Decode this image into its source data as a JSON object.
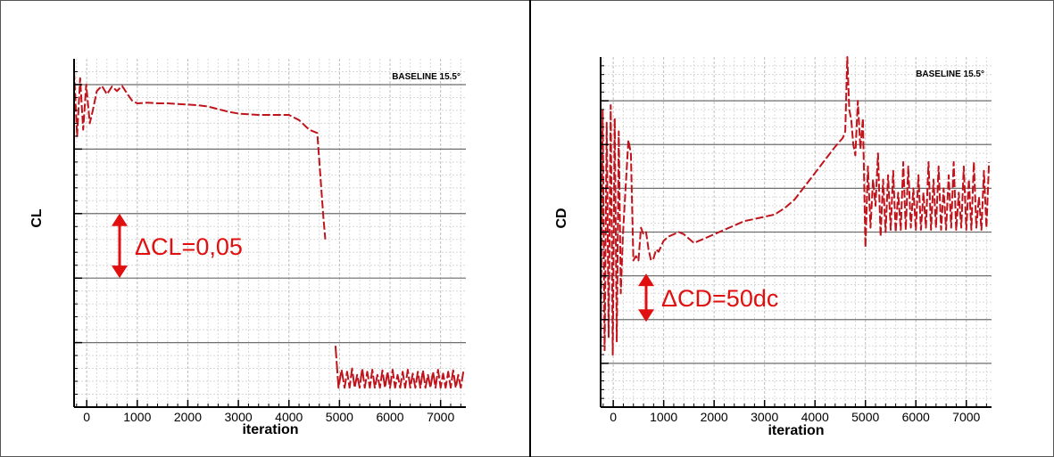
{
  "chart_data": [
    {
      "type": "line",
      "title": "BASELINE 15.5°",
      "xlabel": "iteration",
      "ylabel": "CL",
      "xlim": [
        -250,
        7500
      ],
      "ylim": [
        0,
        5.4
      ],
      "x_ticks": [
        0,
        1000,
        2000,
        3000,
        4000,
        5000,
        6000,
        7000
      ],
      "grid": true,
      "line_color": "#c0141c",
      "annotation": {
        "text": "ΔCL=0,05",
        "arrow_span": [
          2.0,
          3.0
        ]
      },
      "series": [
        {
          "x": [
            -250,
            -190,
            -130,
            -70,
            -10,
            60,
            120,
            200,
            300,
            400,
            500,
            600,
            700,
            800,
            900,
            1000,
            1200,
            1400,
            1600,
            1800,
            2000,
            2200,
            2400,
            2600,
            2800,
            3000,
            3200,
            3400,
            3600,
            3800,
            4000,
            4200,
            4400,
            4560,
            4620,
            4680,
            4720
          ],
          "y": [
            5.2,
            4.2,
            5.1,
            4.3,
            5.0,
            4.4,
            4.6,
            4.9,
            4.98,
            4.85,
            4.97,
            4.9,
            4.98,
            4.86,
            4.75,
            4.71,
            4.72,
            4.71,
            4.71,
            4.7,
            4.69,
            4.68,
            4.66,
            4.62,
            4.58,
            4.55,
            4.54,
            4.53,
            4.53,
            4.53,
            4.53,
            4.45,
            4.3,
            4.25,
            3.6,
            2.95,
            2.6
          ]
        },
        {
          "x": [
            4920,
            4980,
            5040,
            5100,
            5150,
            5200,
            5250,
            5300,
            5350,
            5400,
            5450,
            5500,
            5550,
            5600,
            5650,
            5700,
            5750,
            5800,
            5850,
            5900,
            5950,
            6000,
            6050,
            6100,
            6150,
            6200,
            6250,
            6300,
            6350,
            6400,
            6450,
            6500,
            6550,
            6600,
            6650,
            6700,
            6750,
            6800,
            6850,
            6900,
            6950,
            7000,
            7050,
            7100,
            7150,
            7200,
            7250,
            7300,
            7350,
            7400,
            7450
          ],
          "y": [
            0.95,
            0.3,
            0.58,
            0.3,
            0.55,
            0.3,
            0.6,
            0.3,
            0.5,
            0.3,
            0.6,
            0.3,
            0.55,
            0.3,
            0.58,
            0.3,
            0.5,
            0.3,
            0.57,
            0.3,
            0.55,
            0.3,
            0.58,
            0.3,
            0.5,
            0.3,
            0.55,
            0.3,
            0.58,
            0.3,
            0.52,
            0.3,
            0.55,
            0.3,
            0.57,
            0.3,
            0.5,
            0.3,
            0.55,
            0.3,
            0.58,
            0.3,
            0.52,
            0.3,
            0.55,
            0.3,
            0.57,
            0.3,
            0.5,
            0.3,
            0.55
          ]
        }
      ]
    },
    {
      "type": "line",
      "title": "BASELINE 15.5°",
      "xlabel": "iteration",
      "ylabel": "CD",
      "xlim": [
        -250,
        7500
      ],
      "ylim": [
        0,
        8.0
      ],
      "x_ticks": [
        0,
        1000,
        2000,
        3000,
        4000,
        5000,
        6000,
        7000
      ],
      "grid": true,
      "line_color": "#c0141c",
      "annotation": {
        "text": "ΔCD=50dc",
        "arrow_span": [
          1.95,
          3.05
        ]
      },
      "series": [
        {
          "x": [
            -250,
            -210,
            -170,
            -130,
            -90,
            -50,
            -10,
            30,
            70,
            110,
            150,
            190,
            230,
            270,
            300,
            350,
            400,
            450,
            500,
            550,
            600,
            650,
            700,
            750,
            800,
            850,
            900,
            1000,
            1100,
            1200,
            1300,
            1400,
            1500,
            1600,
            1700,
            1800,
            2000,
            2200,
            2400,
            2600,
            2800,
            3000,
            3200,
            3400,
            3600,
            3800,
            4000,
            4200,
            4400,
            4550,
            4600,
            4640,
            4680,
            4720,
            4760,
            4800,
            4850,
            4900,
            4950,
            5000,
            5050,
            5100,
            5150,
            5200,
            5250,
            5300,
            5350,
            5400,
            5450,
            5500,
            5550,
            5600,
            5650,
            5700,
            5750,
            5800,
            5850,
            5900,
            5950,
            6000,
            6050,
            6100,
            6150,
            6200,
            6250,
            6300,
            6350,
            6400,
            6450,
            6500,
            6550,
            6600,
            6650,
            6700,
            6750,
            6800,
            6850,
            6900,
            6950,
            7000,
            7050,
            7100,
            7150,
            7200,
            7250,
            7300,
            7350,
            7400,
            7450
          ],
          "y": [
            1.0,
            6.8,
            1.3,
            6.5,
            1.6,
            6.9,
            1.2,
            6.6,
            1.5,
            6.3,
            2.6,
            3.9,
            4.7,
            5.5,
            6.1,
            5.8,
            3.35,
            3.45,
            3.35,
            4.1,
            3.95,
            4.0,
            3.6,
            3.35,
            3.4,
            3.6,
            3.55,
            3.8,
            3.9,
            3.95,
            4.0,
            3.95,
            3.85,
            3.75,
            3.8,
            3.85,
            3.95,
            4.05,
            4.15,
            4.25,
            4.3,
            4.35,
            4.4,
            4.55,
            4.75,
            5.05,
            5.35,
            5.65,
            5.95,
            6.15,
            6.3,
            8.0,
            6.8,
            6.55,
            6.0,
            5.75,
            7.0,
            5.9,
            6.6,
            3.65,
            5.5,
            4.1,
            5.2,
            4.6,
            5.8,
            3.9,
            5.2,
            4.0,
            5.3,
            4.05,
            5.4,
            4.0,
            4.9,
            4.05,
            5.6,
            4.05,
            5.5,
            4.1,
            5.0,
            4.05,
            5.3,
            4.05,
            4.9,
            4.1,
            5.6,
            4.05,
            5.2,
            4.1,
            5.5,
            4.05,
            5.0,
            4.05,
            5.3,
            4.1,
            5.6,
            4.05,
            4.9,
            4.1,
            5.5,
            4.05,
            5.2,
            4.05,
            5.6,
            4.1,
            4.8,
            4.05,
            5.4,
            4.1,
            5.6
          ]
        }
      ]
    }
  ]
}
